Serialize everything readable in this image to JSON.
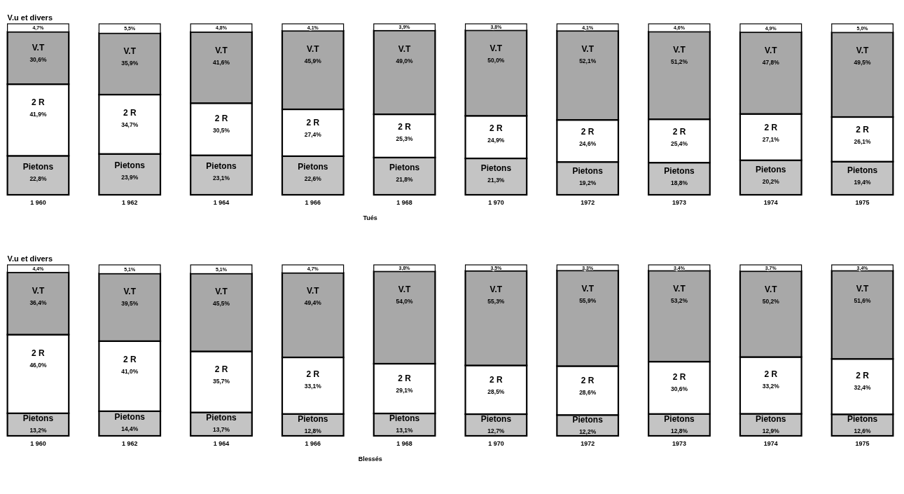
{
  "chart_data": [
    {
      "type": "bar",
      "stacked": true,
      "xlabel": "Tués",
      "categories": [
        "1 960",
        "1 962",
        "1 964",
        "1 966",
        "1 968",
        "1 970",
        "1972",
        "1973",
        "1974",
        "1975"
      ],
      "ylim": [
        0,
        100
      ],
      "tick_labels": "x",
      "legend": false,
      "series": [
        {
          "name": "Pietons",
          "color": "#c4c4c4",
          "values": [
            22.8,
            23.9,
            23.1,
            22.6,
            21.8,
            21.3,
            19.2,
            18.8,
            20.2,
            19.4
          ],
          "value_labels": [
            "22,8%",
            "23,9%",
            "23,1%",
            "22,6%",
            "21,8%",
            "21,3%",
            "19,2%",
            "18,8%",
            "20,2%",
            "19,4%"
          ]
        },
        {
          "name": "2 R",
          "color": "#ffffff",
          "values": [
            41.9,
            34.7,
            30.5,
            27.4,
            25.3,
            24.9,
            24.6,
            25.4,
            27.1,
            26.1
          ],
          "value_labels": [
            "41,9%",
            "34,7%",
            "30,5%",
            "27,4%",
            "25,3%",
            "24,9%",
            "24,6%",
            "25,4%",
            "27,1%",
            "26,1%"
          ]
        },
        {
          "name": "V.T",
          "color": "#a8a8a8",
          "values": [
            30.6,
            35.9,
            41.6,
            45.9,
            49.0,
            50.0,
            52.1,
            51.2,
            47.8,
            49.5
          ],
          "value_labels": [
            "30,6%",
            "35,9%",
            "41,6%",
            "45,9%",
            "49,0%",
            "50,0%",
            "52,1%",
            "51,2%",
            "47,8%",
            "49,5%"
          ]
        },
        {
          "name": "V.u et divers",
          "color": "#ffffff",
          "values": [
            4.7,
            5.5,
            4.8,
            4.1,
            3.9,
            3.8,
            4.1,
            4.6,
            4.9,
            5.0
          ],
          "value_labels": [
            "4,7%",
            "5,5%",
            "4,8%",
            "4,1%",
            "3,9%",
            "3,8%",
            "4,1%",
            "4,6%",
            "4,9%",
            "5,0%"
          ]
        }
      ]
    },
    {
      "type": "bar",
      "stacked": true,
      "xlabel": "Blessés",
      "categories": [
        "1 960",
        "1 962",
        "1 964",
        "1 966",
        "1 968",
        "1 970",
        "1972",
        "1973",
        "1974",
        "1975"
      ],
      "ylim": [
        0,
        100
      ],
      "tick_labels": "x",
      "legend": false,
      "series": [
        {
          "name": "Pietons",
          "color": "#c4c4c4",
          "values": [
            13.2,
            14.4,
            13.7,
            12.8,
            13.1,
            12.7,
            12.2,
            12.8,
            12.9,
            12.6
          ],
          "value_labels": [
            "13,2%",
            "14,4%",
            "13,7%",
            "12,8%",
            "13,1%",
            "12,7%",
            "12,2%",
            "12,8%",
            "12,9%",
            "12,6%"
          ]
        },
        {
          "name": "2 R",
          "color": "#ffffff",
          "values": [
            46.0,
            41.0,
            35.7,
            33.1,
            29.1,
            28.5,
            28.6,
            30.6,
            33.2,
            32.4
          ],
          "value_labels": [
            "46,0%",
            "41,0%",
            "35,7%",
            "33,1%",
            "29,1%",
            "28,5%",
            "28,6%",
            "30,6%",
            "33,2%",
            "32,4%"
          ]
        },
        {
          "name": "V.T",
          "color": "#a8a8a8",
          "values": [
            36.4,
            39.5,
            45.5,
            49.4,
            54.0,
            55.3,
            55.9,
            53.2,
            50.2,
            51.6
          ],
          "value_labels": [
            "36,4%",
            "39,5%",
            "45,5%",
            "49,4%",
            "54,0%",
            "55,3%",
            "55,9%",
            "53,2%",
            "50,2%",
            "51,6%"
          ]
        },
        {
          "name": "V.u et divers",
          "color": "#ffffff",
          "values": [
            4.4,
            5.1,
            5.1,
            4.7,
            3.8,
            3.5,
            3.3,
            3.4,
            3.7,
            3.4
          ],
          "value_labels": [
            "4,4%",
            "5,1%",
            "5,1%",
            "4,7%",
            "3,8%",
            "3,5%",
            "3,3%",
            "3,4%",
            "3,7%",
            "3,4%"
          ]
        }
      ]
    }
  ]
}
